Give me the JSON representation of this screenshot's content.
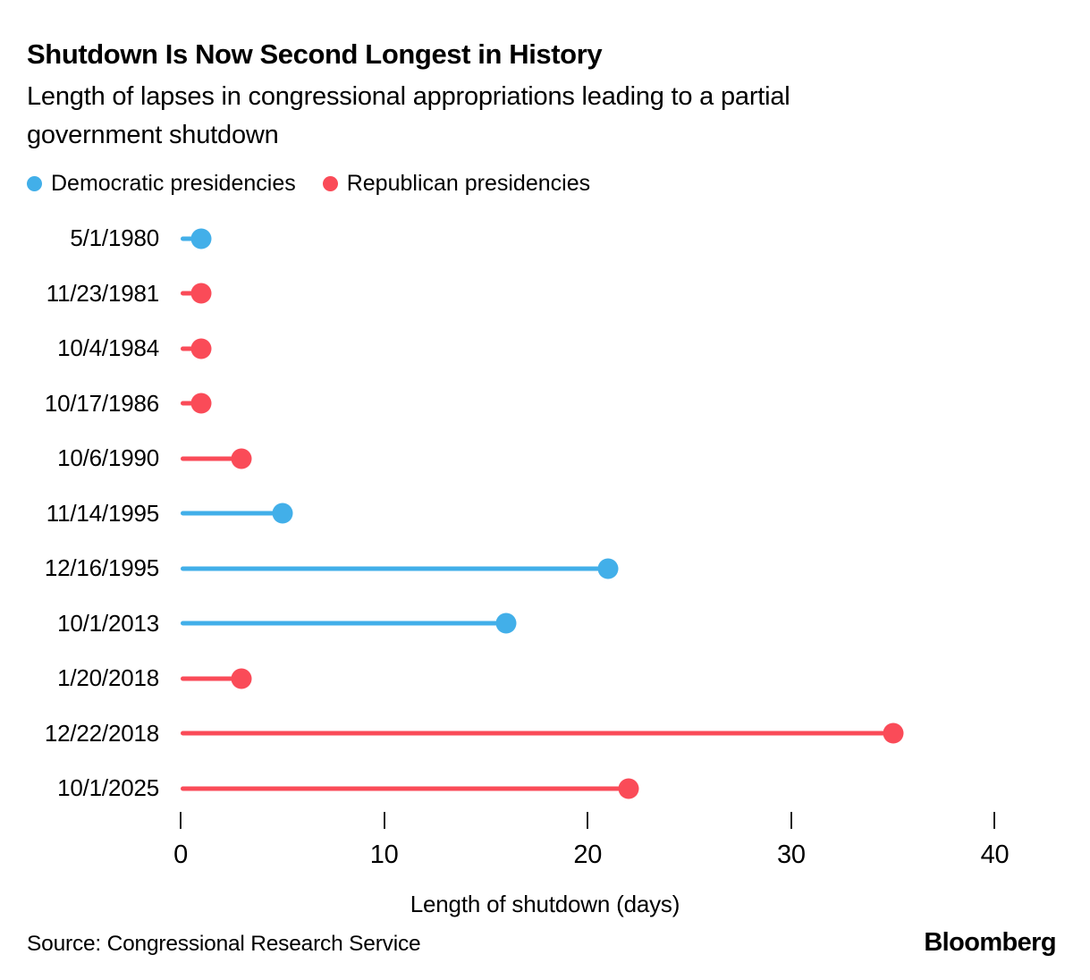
{
  "chart_data": {
    "type": "lollipop",
    "orientation": "horizontal",
    "title": "Shutdown Is Now Second Longest in History",
    "subtitle": "Length of lapses in congressional appropriations leading to a partial government shutdown",
    "categories": [
      "5/1/1980",
      "11/23/1981",
      "10/4/1984",
      "10/17/1986",
      "10/6/1990",
      "11/14/1995",
      "12/16/1995",
      "10/1/2013",
      "1/20/2018",
      "12/22/2018",
      "10/1/2025"
    ],
    "values": [
      1,
      1,
      1,
      1,
      3,
      5,
      21,
      16,
      3,
      35,
      22
    ],
    "point_parties": [
      "Democratic",
      "Republican",
      "Republican",
      "Republican",
      "Republican",
      "Democratic",
      "Democratic",
      "Democratic",
      "Republican",
      "Republican",
      "Republican"
    ],
    "party_colors": {
      "Democratic": "#42AFE9",
      "Republican": "#FA4B58"
    },
    "legend": [
      {
        "label": "Democratic presidencies",
        "party": "Democratic"
      },
      {
        "label": "Republican presidencies",
        "party": "Republican"
      }
    ],
    "xlabel": "Length of shutdown (days)",
    "xticks": [
      0,
      10,
      20,
      30,
      40
    ],
    "xlim": [
      0,
      42
    ],
    "grid": false,
    "legend_position": "top-left"
  },
  "footer": {
    "source": "Source: Congressional Research Service",
    "brand": "Bloomberg"
  }
}
